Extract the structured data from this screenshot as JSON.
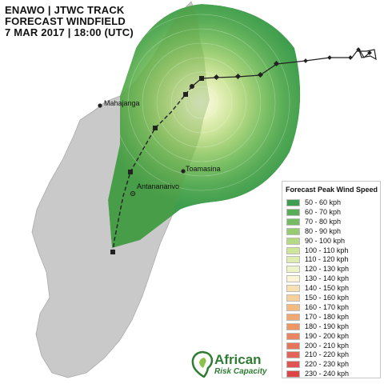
{
  "title": {
    "line1": "ENAWO  | JTWC TRACK",
    "line2": "FORECAST WINDFIELD",
    "line3": "7 MAR 2017 | 18:00 (UTC)"
  },
  "cities": [
    {
      "name": "Mahajanga"
    },
    {
      "name": "Toamasina"
    },
    {
      "name": "Antananarivo"
    }
  ],
  "legend": {
    "title": "Forecast Peak Wind Speed",
    "items": [
      {
        "label": "50 - 60 kph",
        "color": "#3f9e4d"
      },
      {
        "label": "60 - 70 kph",
        "color": "#5aad57"
      },
      {
        "label": "70 - 80 kph",
        "color": "#74bb62"
      },
      {
        "label": "80 - 90 kph",
        "color": "#96cb72"
      },
      {
        "label": "90 - 100 kph",
        "color": "#b5d985"
      },
      {
        "label": "100 - 110 kph",
        "color": "#cfe59a"
      },
      {
        "label": "110 - 120 kph",
        "color": "#e0edb0"
      },
      {
        "label": "120 - 130 kph",
        "color": "#eef4c8"
      },
      {
        "label": "130 - 140 kph",
        "color": "#fbf5d6"
      },
      {
        "label": "140 - 150 kph",
        "color": "#f8e0b2"
      },
      {
        "label": "150 - 160 kph",
        "color": "#f6cf9a"
      },
      {
        "label": "160 - 170 kph",
        "color": "#f3ba82"
      },
      {
        "label": "170 - 180 kph",
        "color": "#f0a872"
      },
      {
        "label": "180 - 190 kph",
        "color": "#ed9664"
      },
      {
        "label": "190 - 200 kph",
        "color": "#ea8560"
      },
      {
        "label": "200 - 210 kph",
        "color": "#e7755c"
      },
      {
        "label": "210 - 220 kph",
        "color": "#e46458"
      },
      {
        "label": "220 - 230 kph",
        "color": "#e15454"
      },
      {
        "label": "230 - 240 kph",
        "color": "#dd4444"
      }
    ]
  },
  "logo": {
    "main": "African",
    "sub": "Risk Capacity"
  }
}
